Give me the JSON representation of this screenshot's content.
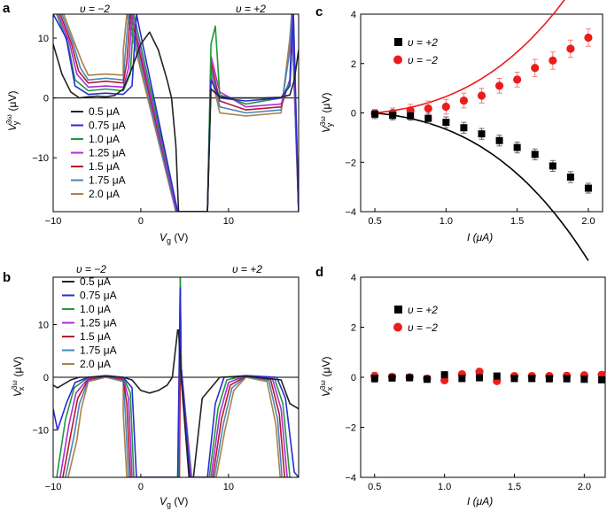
{
  "chart_data": [
    {
      "id": "a",
      "type": "line",
      "panel_label": "a",
      "xlabel_main": "V",
      "xlabel_sub": "g",
      "xlabel_unit": " (V)",
      "ylabel_main": "V",
      "ylabel_sup": "3ω",
      "ylabel_sub": "y",
      "ylabel_unit": " (μV)",
      "xlim": [
        -10,
        18
      ],
      "ylim": [
        -19,
        14
      ],
      "xticks": [
        -10,
        0,
        10
      ],
      "yticks": [
        -10,
        0,
        10
      ],
      "annotations": [
        "υ = −2",
        "υ = +2"
      ],
      "legend": [
        "0.5 μA",
        "0.75 μA",
        "1.0 μA",
        "1.25 μA",
        "1.5 μA",
        "1.75 μA",
        "2.0 μA"
      ],
      "colors": [
        "#222222",
        "#2b2bd6",
        "#1f9a3a",
        "#b02bd6",
        "#b5192e",
        "#4a86b8",
        "#a8824a"
      ],
      "series": [
        {
          "name": "0.5 μA",
          "x": [
            -10,
            -9,
            -8,
            -7,
            -6,
            -5,
            -4,
            -3,
            -2,
            -1,
            0,
            1,
            2,
            3,
            3.5,
            4,
            4.3,
            7.6,
            8,
            9,
            10,
            12,
            14,
            16,
            17,
            17.5,
            18
          ],
          "y": [
            9,
            4,
            1,
            0,
            0.2,
            0.3,
            0.2,
            0.4,
            1.5,
            5,
            9,
            11,
            8,
            3,
            0,
            -8,
            -19,
            -19,
            1.5,
            0.2,
            0,
            0,
            0,
            0.1,
            0.5,
            3,
            8
          ]
        },
        {
          "name": "0.75 μA",
          "x": [
            -10,
            -8.5,
            -7.5,
            -6,
            -4,
            -2,
            -1,
            -0.5,
            4.2,
            7.6,
            8,
            9,
            12,
            16,
            17,
            17.4,
            18
          ],
          "y": [
            14,
            10,
            2,
            0.6,
            0.8,
            0.6,
            2,
            14,
            -19,
            -19,
            3,
            0,
            -0.5,
            0,
            2,
            14,
            -19
          ]
        },
        {
          "name": "1.0 μA",
          "x": [
            -9.6,
            -8.3,
            -7.5,
            -6,
            -4,
            -2,
            -1.2,
            -0.8,
            4.2,
            7.6,
            8,
            8.5,
            9,
            12,
            16,
            17,
            17.4,
            18
          ],
          "y": [
            14,
            9,
            3,
            1.2,
            1.5,
            1.2,
            4,
            14,
            -19,
            -19,
            9,
            12,
            0.5,
            -1,
            0,
            2.5,
            14,
            -19
          ]
        },
        {
          "name": "1.25 μA",
          "x": [
            -9.4,
            -8.1,
            -7.3,
            -6,
            -4,
            -2,
            -1.4,
            -1,
            4.1,
            7.6,
            8,
            9,
            12,
            16,
            17,
            17.3,
            18
          ],
          "y": [
            14,
            9,
            4,
            1.8,
            2,
            1.8,
            5,
            14,
            -19,
            -19,
            7,
            1,
            -1.5,
            -1,
            3,
            14,
            -19
          ]
        },
        {
          "name": "1.5 μA",
          "x": [
            -9.2,
            -7.9,
            -7.1,
            -6,
            -4,
            -2,
            -1.6,
            -1.2,
            4.1,
            7.6,
            8,
            9,
            12,
            16,
            17,
            17.3,
            18
          ],
          "y": [
            14,
            9,
            4.5,
            2.5,
            2.8,
            2.5,
            6,
            14,
            -19,
            -19,
            6,
            -0.5,
            -2,
            -1.5,
            3,
            14,
            -19
          ]
        },
        {
          "name": "1.75 μA",
          "x": [
            -9,
            -7.7,
            -6.9,
            -6,
            -4,
            -2,
            -1.8,
            -1.4,
            4,
            7.6,
            8,
            9,
            12,
            16,
            17,
            17.2,
            18
          ],
          "y": [
            14,
            9,
            5,
            3,
            3.3,
            3,
            7,
            14,
            -19,
            -19,
            5,
            -1.5,
            -2.5,
            -2,
            8,
            14,
            -19
          ]
        },
        {
          "name": "2.0 μA",
          "x": [
            -8.8,
            -7.5,
            -6.7,
            -6,
            -4,
            -2,
            -2,
            -1.6,
            4,
            7.6,
            8,
            9,
            12,
            16,
            17,
            17.2,
            18
          ],
          "y": [
            14,
            9,
            6,
            3.8,
            4,
            3.8,
            8,
            14,
            -19,
            -19,
            4,
            -2.5,
            -3,
            -2.5,
            10,
            14,
            -19
          ]
        }
      ]
    },
    {
      "id": "b",
      "type": "line",
      "panel_label": "b",
      "xlabel_main": "V",
      "xlabel_sub": "g",
      "xlabel_unit": " (V)",
      "ylabel_main": "V",
      "ylabel_sup": "3ω",
      "ylabel_sub": "x",
      "ylabel_unit": " (μV)",
      "xlim": [
        -10,
        18
      ],
      "ylim": [
        -19,
        19
      ],
      "xticks": [
        -10,
        0,
        10
      ],
      "yticks": [
        -10,
        0,
        10
      ],
      "annotations": [
        "υ = −2",
        "υ = +2"
      ],
      "legend": [
        "0.5 μA",
        "0.75 μA",
        "1.0 μA",
        "1.25 μA",
        "1.5 μA",
        "1.75 μA",
        "2.0 μA"
      ],
      "colors": [
        "#222222",
        "#2b2bd6",
        "#1f9a3a",
        "#b02bd6",
        "#b5192e",
        "#4a86b8",
        "#a8824a"
      ],
      "series": [
        {
          "name": "0.5 μA",
          "x": [
            -10,
            -9.5,
            -9,
            -8,
            -7,
            -6,
            -4,
            -2,
            -1,
            0,
            1,
            2,
            3,
            3.6,
            4.2,
            4.3,
            4.6,
            5.5,
            6,
            7,
            8,
            9,
            12,
            16,
            17,
            18
          ],
          "y": [
            -1.5,
            -2,
            -1.5,
            -0.5,
            0,
            0,
            0.2,
            0,
            -0.5,
            -2.5,
            -3,
            -2.5,
            -1.5,
            0,
            9,
            9,
            0,
            -19,
            -19,
            -4,
            -2,
            0,
            0.2,
            -0.5,
            -5,
            -6
          ]
        },
        {
          "name": "0.75 μA",
          "x": [
            -10,
            -9.5,
            -8.5,
            -7.5,
            -6,
            -4,
            -2,
            -1,
            -0.5,
            4.2,
            4.5,
            4.6,
            5.6,
            7.6,
            8.5,
            9.5,
            12,
            15.5,
            16.5,
            17.5,
            18
          ],
          "y": [
            -6,
            -10,
            -5,
            -1,
            0,
            0.3,
            0,
            -2,
            -19,
            -19,
            17,
            2,
            -19,
            -19,
            -5,
            0,
            0.3,
            0,
            -4,
            -18,
            -19
          ]
        },
        {
          "name": "1.0 μA",
          "x": [
            -9.6,
            -8.6,
            -7.6,
            -6,
            -4,
            -2,
            -1.2,
            -0.8,
            4.3,
            4.5,
            4.6,
            5.6,
            7.8,
            8.8,
            9.8,
            12,
            15.2,
            16.2,
            17,
            17.2
          ],
          "y": [
            -19,
            -8,
            -2,
            0,
            0.3,
            0,
            -3,
            -19,
            -19,
            19,
            2,
            -19,
            -19,
            -6,
            -0.5,
            0.3,
            0,
            -5,
            -19,
            -19
          ]
        },
        {
          "name": "1.25 μA",
          "x": [
            -9.2,
            -8.2,
            -7.4,
            -6,
            -4,
            -2,
            -1.4,
            -1,
            4.3,
            4.5,
            4.6,
            5.7,
            8,
            9,
            10,
            12,
            15,
            16,
            16.7,
            16.9
          ],
          "y": [
            -19,
            -9,
            -3,
            -0.2,
            0.3,
            -0.2,
            -4,
            -19,
            -19,
            19,
            2,
            -19,
            -19,
            -7,
            -1,
            0.3,
            -0.2,
            -6,
            -19,
            -19
          ]
        },
        {
          "name": "1.5 μA",
          "x": [
            -8.9,
            -7.9,
            -7.2,
            -6,
            -4,
            -2,
            -1.6,
            -1.2,
            4.4,
            4.5,
            4.6,
            5.7,
            8.2,
            9.2,
            10.2,
            12,
            14.8,
            15.8,
            16.4,
            16.6
          ],
          "y": [
            -19,
            -10,
            -4,
            -0.4,
            0.2,
            -0.4,
            -5,
            -19,
            -19,
            3,
            2,
            -19,
            -19,
            -8,
            -1.5,
            0.2,
            -0.4,
            -7,
            -19,
            -19
          ]
        },
        {
          "name": "1.75 μA",
          "x": [
            -8.6,
            -7.6,
            -7,
            -6,
            -4,
            -2,
            -1.8,
            -1.4,
            4.3,
            4.5,
            4.6,
            5.8,
            8.4,
            9.4,
            10.4,
            12,
            14.6,
            15.6,
            16.1,
            16.3
          ],
          "y": [
            -19,
            -11,
            -5,
            -0.6,
            0.1,
            -0.6,
            -6,
            -19,
            -19,
            1,
            2,
            -19,
            -19,
            -9,
            -2,
            0.1,
            -0.6,
            -8,
            -19,
            -19
          ]
        },
        {
          "name": "2.0 μA",
          "x": [
            -8.3,
            -7.3,
            -6.8,
            -6,
            -4,
            -2,
            -2,
            -1.6,
            4.3,
            4.5,
            4.6,
            5.8,
            8.6,
            9.6,
            10.6,
            12,
            14.4,
            15.4,
            15.9,
            16.1
          ],
          "y": [
            -19,
            -12,
            -6,
            -0.8,
            0,
            -0.8,
            -7,
            -19,
            -19,
            0,
            2,
            -19,
            -19,
            -10,
            -2.5,
            0,
            -0.8,
            -9,
            -19,
            -19
          ]
        }
      ]
    },
    {
      "id": "c",
      "type": "scatter",
      "panel_label": "c",
      "xlabel": "I (μA)",
      "ylabel_main": "V",
      "ylabel_sup": "3ω",
      "ylabel_sub": "y",
      "ylabel_unit": " (μV)",
      "xlim": [
        0.4,
        2.1
      ],
      "ylim": [
        -4,
        4
      ],
      "xticks": [
        0.5,
        1.0,
        1.5,
        2.0
      ],
      "yticks": [
        -4,
        -2,
        0,
        2,
        4
      ],
      "xticklabels": [
        "0.5",
        "1.0",
        "1.5",
        "2.0"
      ],
      "yticklabels": [
        "−4",
        "−2",
        "0",
        "2",
        "4"
      ],
      "legend": [
        "υ = +2",
        "υ = −2"
      ],
      "x": [
        0.5,
        0.625,
        0.75,
        0.875,
        1.0,
        1.125,
        1.25,
        1.375,
        1.5,
        1.625,
        1.75,
        1.875,
        2.0
      ],
      "series": [
        {
          "name": "υ = +2",
          "marker": "square",
          "color": "#000000",
          "y": [
            -0.05,
            -0.1,
            -0.12,
            -0.22,
            -0.38,
            -0.6,
            -0.85,
            -1.12,
            -1.4,
            -1.68,
            -2.15,
            -2.6,
            -3.05
          ],
          "err": [
            0.18,
            0.18,
            0.18,
            0.2,
            0.22,
            0.22,
            0.22,
            0.22,
            0.22,
            0.22,
            0.22,
            0.22,
            0.2
          ]
        },
        {
          "name": "υ = −2",
          "marker": "circle",
          "color": "#ee1b1b",
          "y": [
            -0.02,
            0.0,
            0.1,
            0.18,
            0.25,
            0.5,
            0.7,
            1.1,
            1.35,
            1.82,
            2.12,
            2.6,
            3.05
          ],
          "err": [
            0.15,
            0.2,
            0.25,
            0.3,
            0.3,
            0.3,
            0.3,
            0.3,
            0.3,
            0.35,
            0.35,
            0.35,
            0.35
          ]
        }
      ],
      "fits": [
        {
          "name": "fit υ = +2",
          "color": "#000000",
          "coef": -0.76
        },
        {
          "name": "fit υ = −2",
          "color": "#ee1b1b",
          "coef": 0.76
        }
      ]
    },
    {
      "id": "d",
      "type": "scatter",
      "panel_label": "d",
      "xlabel": "I (μA)",
      "ylabel_main": "V",
      "ylabel_sup": "3ω",
      "ylabel_sub": "x",
      "ylabel_unit": " (μV)",
      "xlim": [
        0.4,
        2.15
      ],
      "ylim": [
        -4,
        4
      ],
      "xticks": [
        0.5,
        1.0,
        1.5,
        2.0
      ],
      "yticks": [
        -4,
        -2,
        0,
        2,
        4
      ],
      "xticklabels": [
        "0.5",
        "1.0",
        "1.5",
        "2.0"
      ],
      "yticklabels": [
        "−4",
        "−2",
        "0",
        "2",
        "4"
      ],
      "legend": [
        "υ = +2",
        "υ = −2"
      ],
      "x": [
        0.5,
        0.625,
        0.75,
        0.875,
        1.0,
        1.125,
        1.25,
        1.375,
        1.5,
        1.625,
        1.75,
        1.875,
        2.0,
        2.125
      ],
      "series": [
        {
          "name": "υ = +2",
          "marker": "square",
          "color": "#000000",
          "y": [
            -0.05,
            -0.03,
            -0.02,
            -0.08,
            0.1,
            -0.05,
            -0.02,
            0.05,
            -0.05,
            -0.05,
            -0.06,
            -0.06,
            -0.08,
            -0.1
          ],
          "err": [
            0.15,
            0.12,
            0.12,
            0.12,
            0.12,
            0.12,
            0.12,
            0.12,
            0.12,
            0.12,
            0.12,
            0.12,
            0.12,
            0.12
          ]
        },
        {
          "name": "υ = −2",
          "marker": "circle",
          "color": "#ee1b1b",
          "y": [
            0.05,
            0.02,
            0.0,
            -0.05,
            -0.12,
            0.12,
            0.22,
            -0.15,
            0.05,
            0.05,
            0.05,
            0.06,
            0.08,
            0.1
          ],
          "err": [
            0.15,
            0.12,
            0.12,
            0.12,
            0.12,
            0.12,
            0.12,
            0.12,
            0.12,
            0.12,
            0.12,
            0.12,
            0.12,
            0.12
          ]
        }
      ]
    }
  ]
}
